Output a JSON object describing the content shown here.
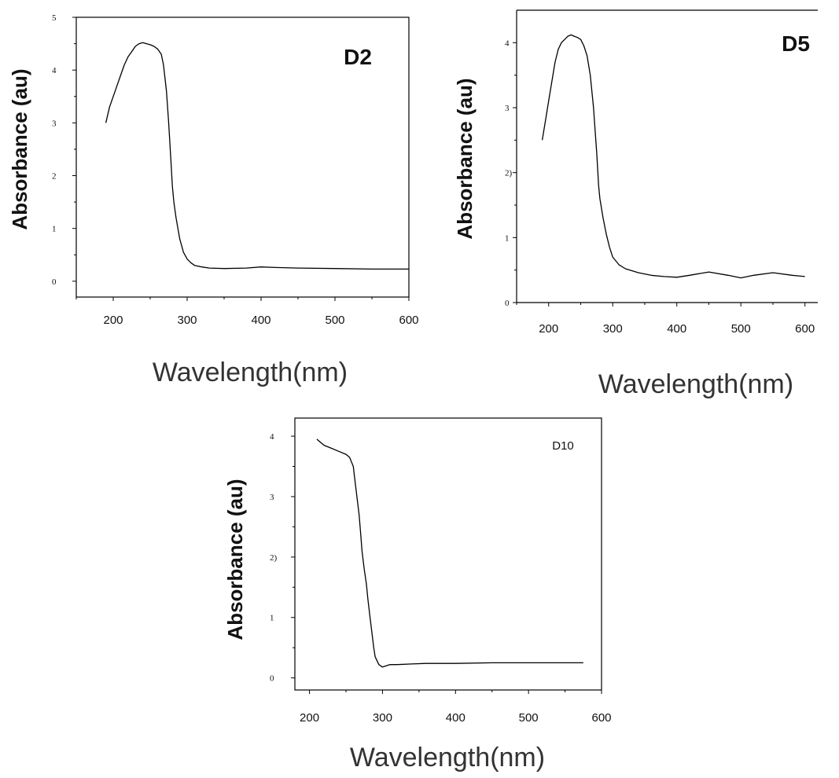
{
  "chart_data": [
    {
      "type": "line",
      "title": "D2",
      "xlabel": "Wavelength(nm)",
      "ylabel": "Absorbance (au)",
      "xlim": [
        150,
        600
      ],
      "ylim": [
        -0.3,
        5
      ],
      "x_ticks": [
        200,
        300,
        400,
        500,
        600
      ],
      "y_ticks": [
        0,
        1,
        2,
        3,
        4,
        5
      ],
      "grid": false,
      "series": [
        {
          "x": [
            190,
            195,
            200,
            205,
            210,
            215,
            220,
            225,
            230,
            235,
            240,
            245,
            250,
            255,
            260,
            265,
            268,
            272,
            275,
            278,
            280,
            282,
            285,
            290,
            295,
            300,
            305,
            310,
            320,
            330,
            350,
            380,
            400,
            420,
            450,
            500,
            550,
            600
          ],
          "y": [
            3.0,
            3.3,
            3.5,
            3.7,
            3.9,
            4.1,
            4.25,
            4.35,
            4.45,
            4.5,
            4.52,
            4.5,
            4.48,
            4.45,
            4.4,
            4.3,
            4.1,
            3.6,
            3.0,
            2.3,
            1.8,
            1.5,
            1.2,
            0.8,
            0.55,
            0.42,
            0.35,
            0.3,
            0.27,
            0.25,
            0.24,
            0.25,
            0.27,
            0.26,
            0.25,
            0.24,
            0.23,
            0.23
          ]
        }
      ]
    },
    {
      "type": "line",
      "title": "D5",
      "xlabel": "Wavelength(nm)",
      "ylabel": "Absorbance (au)",
      "xlim": [
        150,
        620
      ],
      "ylim": [
        0,
        4.5
      ],
      "x_ticks": [
        200,
        300,
        400,
        500,
        600
      ],
      "y_ticks": [
        0,
        1,
        2,
        3,
        4
      ],
      "y_tick_labels": [
        "0",
        "1",
        "2)",
        "3",
        "4"
      ],
      "grid": false,
      "series": [
        {
          "x": [
            190,
            195,
            200,
            205,
            210,
            215,
            220,
            225,
            230,
            235,
            240,
            245,
            250,
            255,
            260,
            265,
            270,
            275,
            278,
            280,
            285,
            290,
            295,
            300,
            310,
            320,
            340,
            360,
            380,
            400,
            420,
            450,
            480,
            500,
            520,
            550,
            580,
            600
          ],
          "y": [
            2.5,
            2.8,
            3.1,
            3.4,
            3.7,
            3.9,
            4.0,
            4.05,
            4.1,
            4.12,
            4.1,
            4.08,
            4.05,
            3.95,
            3.8,
            3.5,
            3.0,
            2.3,
            1.8,
            1.6,
            1.3,
            1.05,
            0.85,
            0.7,
            0.58,
            0.52,
            0.46,
            0.42,
            0.4,
            0.39,
            0.42,
            0.47,
            0.42,
            0.38,
            0.42,
            0.46,
            0.42,
            0.4
          ]
        }
      ]
    },
    {
      "type": "line",
      "title": "D10",
      "xlabel": "Wavelength(nm)",
      "ylabel": "Absorbance (au)",
      "xlim": [
        180,
        600
      ],
      "ylim": [
        -0.2,
        4.3
      ],
      "x_ticks": [
        200,
        300,
        400,
        500,
        600
      ],
      "y_ticks": [
        0,
        1,
        2,
        3,
        4
      ],
      "y_tick_labels": [
        "0",
        "1",
        "2)",
        "3",
        "4"
      ],
      "grid": false,
      "series": [
        {
          "x": [
            210,
            215,
            220,
            230,
            240,
            250,
            255,
            260,
            262,
            265,
            268,
            270,
            272,
            275,
            278,
            280,
            283,
            285,
            288,
            290,
            295,
            300,
            305,
            310,
            320,
            340,
            360,
            380,
            400,
            450,
            500,
            550,
            575
          ],
          "y": [
            3.95,
            3.9,
            3.85,
            3.8,
            3.75,
            3.7,
            3.65,
            3.5,
            3.3,
            3.0,
            2.7,
            2.4,
            2.1,
            1.8,
            1.55,
            1.3,
            1.0,
            0.8,
            0.5,
            0.35,
            0.22,
            0.18,
            0.2,
            0.22,
            0.22,
            0.23,
            0.24,
            0.24,
            0.24,
            0.25,
            0.25,
            0.25,
            0.25
          ]
        }
      ]
    }
  ]
}
